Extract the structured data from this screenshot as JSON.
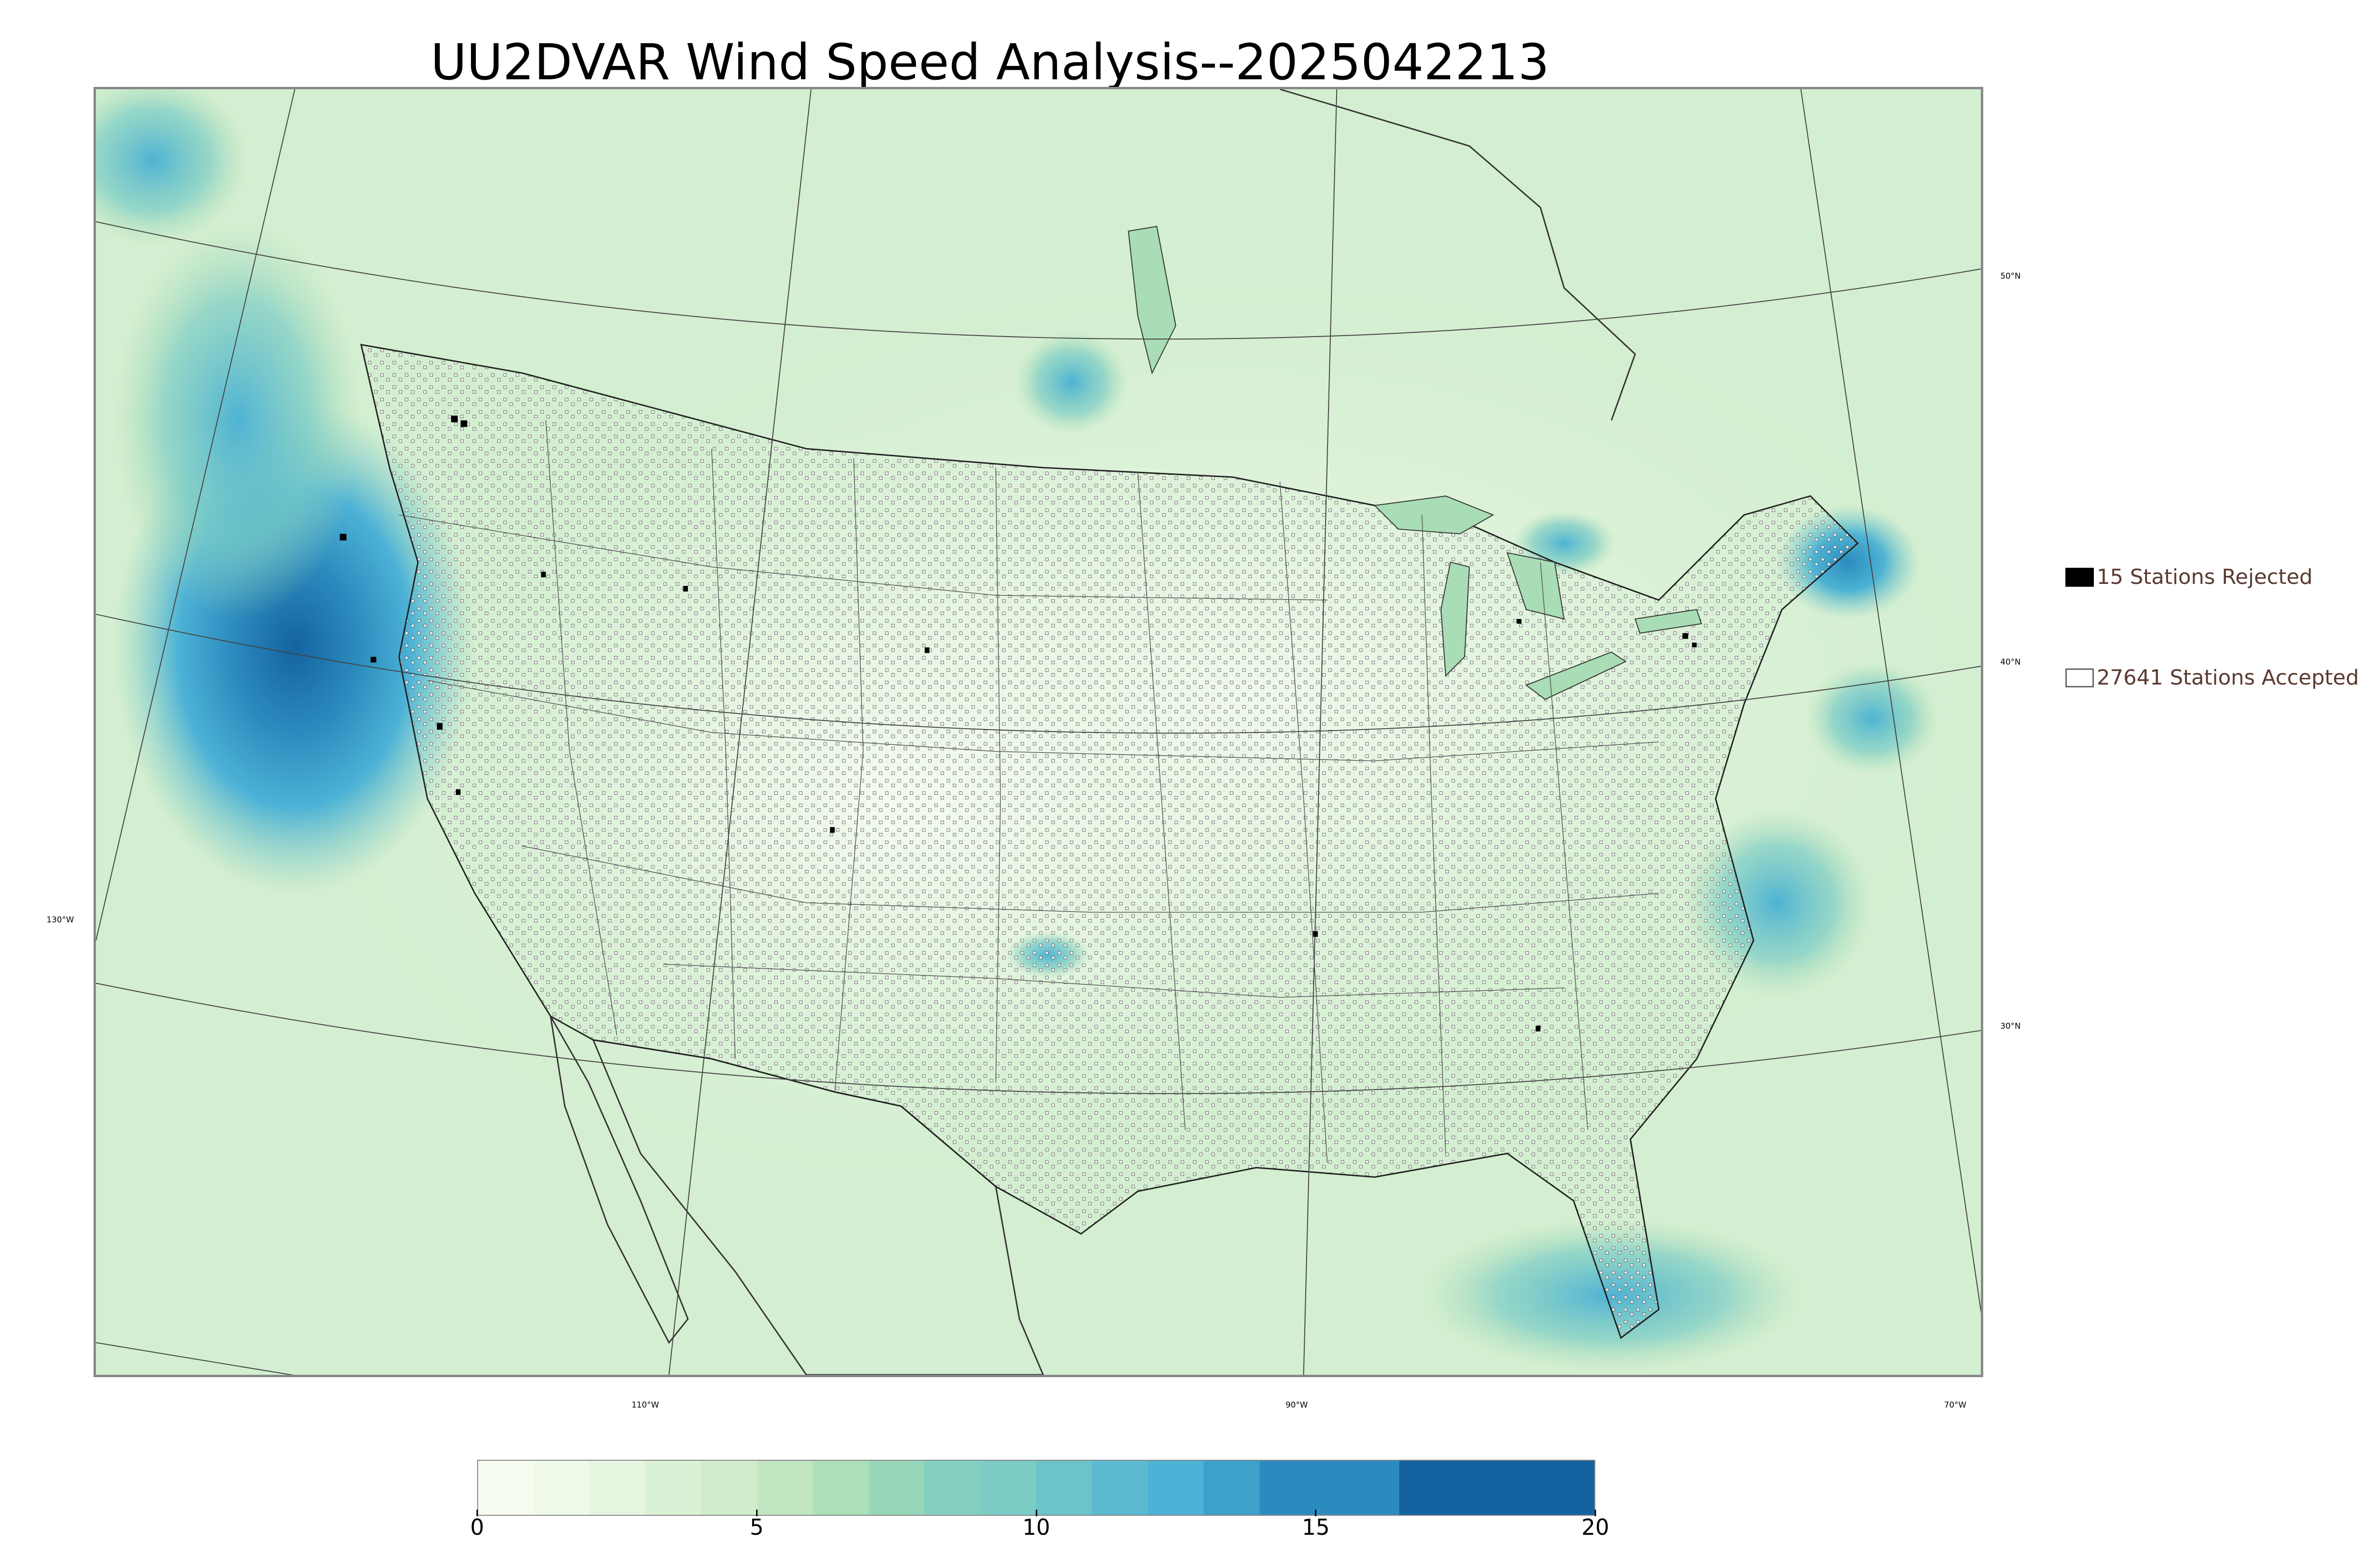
{
  "title": "UU2DVAR Wind Speed Analysis--2025042213",
  "map": {
    "colorscale": [
      "#f7fcf0",
      "#e0f3db",
      "#ccebc5",
      "#a8ddb5",
      "#7bccc4",
      "#4eb3d3",
      "#2b8cbe",
      "#0868ac",
      "#084081"
    ],
    "latitude_labels": [
      {
        "text": "50°N"
      },
      {
        "text": "40°N"
      },
      {
        "text": "30°N"
      }
    ],
    "longitude_labels": [
      {
        "text": "130°W"
      },
      {
        "text": "110°W"
      },
      {
        "text": "90°W"
      },
      {
        "text": "70°W"
      }
    ]
  },
  "legend": {
    "rejected": {
      "label": "15 Stations Rejected",
      "color": "#000000"
    },
    "accepted": {
      "label": "27641 Stations Accepted",
      "color": "#ffffff"
    }
  },
  "colorbar": {
    "ticks": [
      "0",
      "5",
      "10",
      "15",
      "20"
    ],
    "range": [
      0,
      20
    ],
    "levels": [
      {
        "from": 0,
        "to": 1,
        "color": "#f7fcf0"
      },
      {
        "from": 1,
        "to": 2,
        "color": "#eff9ea"
      },
      {
        "from": 2,
        "to": 3,
        "color": "#e5f5e0"
      },
      {
        "from": 3,
        "to": 4,
        "color": "#dbf1d6"
      },
      {
        "from": 4,
        "to": 5,
        "color": "#d1eccc"
      },
      {
        "from": 5,
        "to": 6,
        "color": "#c1e6c0"
      },
      {
        "from": 6,
        "to": 7,
        "color": "#ade0b8"
      },
      {
        "from": 7,
        "to": 8,
        "color": "#97d6b8"
      },
      {
        "from": 8,
        "to": 9,
        "color": "#83cfc0"
      },
      {
        "from": 9,
        "to": 10,
        "color": "#7accc4"
      },
      {
        "from": 10,
        "to": 11,
        "color": "#6cc3c9"
      },
      {
        "from": 11,
        "to": 12,
        "color": "#5bb9d0"
      },
      {
        "from": 12,
        "to": 13,
        "color": "#4db2d6"
      },
      {
        "from": 13,
        "to": 14,
        "color": "#3ea1cc"
      },
      {
        "from": 14,
        "to": 16.5,
        "color": "#2c8bbe"
      },
      {
        "from": 16.5,
        "to": 20,
        "color": "#1463a0"
      }
    ]
  }
}
